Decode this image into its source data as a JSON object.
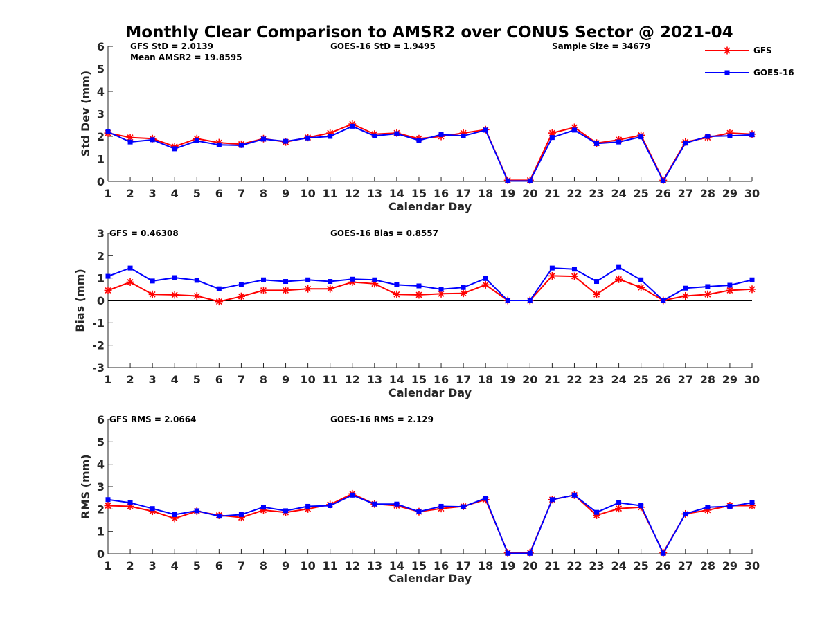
{
  "figure_title": "Monthly Clear Comparison to AMSR2 over CONUS Sector @ 2021-04",
  "legend": [
    {
      "label": "GFS",
      "color": "#ff0000",
      "marker": "asterisk"
    },
    {
      "label": "GOES-16",
      "color": "#0000ff",
      "marker": "square"
    }
  ],
  "chart_data": [
    {
      "type": "line",
      "ylabel": "Std Dev (mm)",
      "xlabel": "Calendar Day",
      "xlim": [
        1,
        30
      ],
      "ylim": [
        0,
        6
      ],
      "yticks": [
        0,
        1,
        2,
        3,
        4,
        5,
        6
      ],
      "x": [
        1,
        2,
        3,
        4,
        5,
        6,
        7,
        8,
        9,
        10,
        11,
        12,
        13,
        14,
        15,
        16,
        17,
        18,
        19,
        20,
        21,
        22,
        23,
        24,
        25,
        26,
        27,
        28,
        29,
        30
      ],
      "annotations": [
        "GFS StD = 2.0139",
        "Mean AMSR2 = 19.8595",
        "GOES-16 StD = 1.9495",
        "Sample Size = 34679"
      ],
      "series": [
        {
          "name": "GFS",
          "values": [
            2.15,
            1.95,
            1.9,
            1.55,
            1.9,
            1.72,
            1.65,
            1.9,
            1.75,
            1.95,
            2.15,
            2.55,
            2.1,
            2.15,
            1.9,
            2.0,
            2.15,
            2.3,
            0.05,
            0.05,
            2.15,
            2.4,
            1.7,
            1.85,
            2.05,
            0.05,
            1.75,
            1.95,
            2.15,
            2.1
          ]
        },
        {
          "name": "GOES-16",
          "values": [
            2.2,
            1.75,
            1.85,
            1.45,
            1.8,
            1.62,
            1.6,
            1.88,
            1.78,
            1.93,
            2.0,
            2.45,
            2.02,
            2.12,
            1.82,
            2.08,
            2.02,
            2.28,
            0.02,
            0.02,
            1.95,
            2.28,
            1.68,
            1.75,
            1.98,
            0.02,
            1.7,
            2.0,
            2.02,
            2.07
          ]
        }
      ]
    },
    {
      "type": "line",
      "ylabel": "Bias (mm)",
      "xlabel": "Calendar Day",
      "xlim": [
        1,
        30
      ],
      "ylim": [
        -3,
        3
      ],
      "yticks": [
        -3,
        -2,
        -1,
        0,
        1,
        2,
        3
      ],
      "x": [
        1,
        2,
        3,
        4,
        5,
        6,
        7,
        8,
        9,
        10,
        11,
        12,
        13,
        14,
        15,
        16,
        17,
        18,
        19,
        20,
        21,
        22,
        23,
        24,
        25,
        26,
        27,
        28,
        29,
        30
      ],
      "reference_line": 0,
      "annotations": [
        "GFS = 0.46308",
        "GOES-16 Bias = 0.8557"
      ],
      "series": [
        {
          "name": "GFS",
          "values": [
            0.45,
            0.82,
            0.27,
            0.25,
            0.2,
            -0.05,
            0.18,
            0.45,
            0.45,
            0.52,
            0.52,
            0.82,
            0.75,
            0.27,
            0.25,
            0.3,
            0.32,
            0.7,
            0.0,
            0.0,
            1.1,
            1.08,
            0.27,
            0.95,
            0.58,
            0.0,
            0.2,
            0.27,
            0.45,
            0.5
          ]
        },
        {
          "name": "GOES-16",
          "values": [
            1.08,
            1.45,
            0.87,
            1.02,
            0.9,
            0.52,
            0.72,
            0.92,
            0.85,
            0.92,
            0.85,
            0.95,
            0.92,
            0.7,
            0.65,
            0.5,
            0.58,
            0.98,
            0.0,
            0.0,
            1.45,
            1.4,
            0.85,
            1.48,
            0.92,
            0.0,
            0.55,
            0.62,
            0.68,
            0.92
          ]
        }
      ]
    },
    {
      "type": "line",
      "ylabel": "RMS (mm)",
      "xlabel": "Calendar Day",
      "xlim": [
        1,
        30
      ],
      "ylim": [
        0,
        6
      ],
      "yticks": [
        0,
        1,
        2,
        3,
        4,
        5,
        6
      ],
      "x": [
        1,
        2,
        3,
        4,
        5,
        6,
        7,
        8,
        9,
        10,
        11,
        12,
        13,
        14,
        15,
        16,
        17,
        18,
        19,
        20,
        21,
        22,
        23,
        24,
        25,
        26,
        27,
        28,
        29,
        30
      ],
      "annotations": [
        "GFS RMS = 2.0664",
        "GOES-16 RMS = 2.129"
      ],
      "series": [
        {
          "name": "GFS",
          "values": [
            2.15,
            2.12,
            1.9,
            1.58,
            1.9,
            1.72,
            1.62,
            1.95,
            1.85,
            2.0,
            2.2,
            2.68,
            2.22,
            2.15,
            1.88,
            2.02,
            2.12,
            2.42,
            0.05,
            0.05,
            2.42,
            2.62,
            1.72,
            2.02,
            2.08,
            0.05,
            1.78,
            1.95,
            2.15,
            2.15
          ]
        },
        {
          "name": "GOES-16",
          "values": [
            2.42,
            2.28,
            2.02,
            1.75,
            1.92,
            1.68,
            1.75,
            2.08,
            1.92,
            2.12,
            2.15,
            2.62,
            2.22,
            2.22,
            1.88,
            2.12,
            2.1,
            2.48,
            0.02,
            0.02,
            2.42,
            2.62,
            1.85,
            2.28,
            2.15,
            0.02,
            1.78,
            2.08,
            2.12,
            2.28
          ]
        }
      ]
    }
  ]
}
